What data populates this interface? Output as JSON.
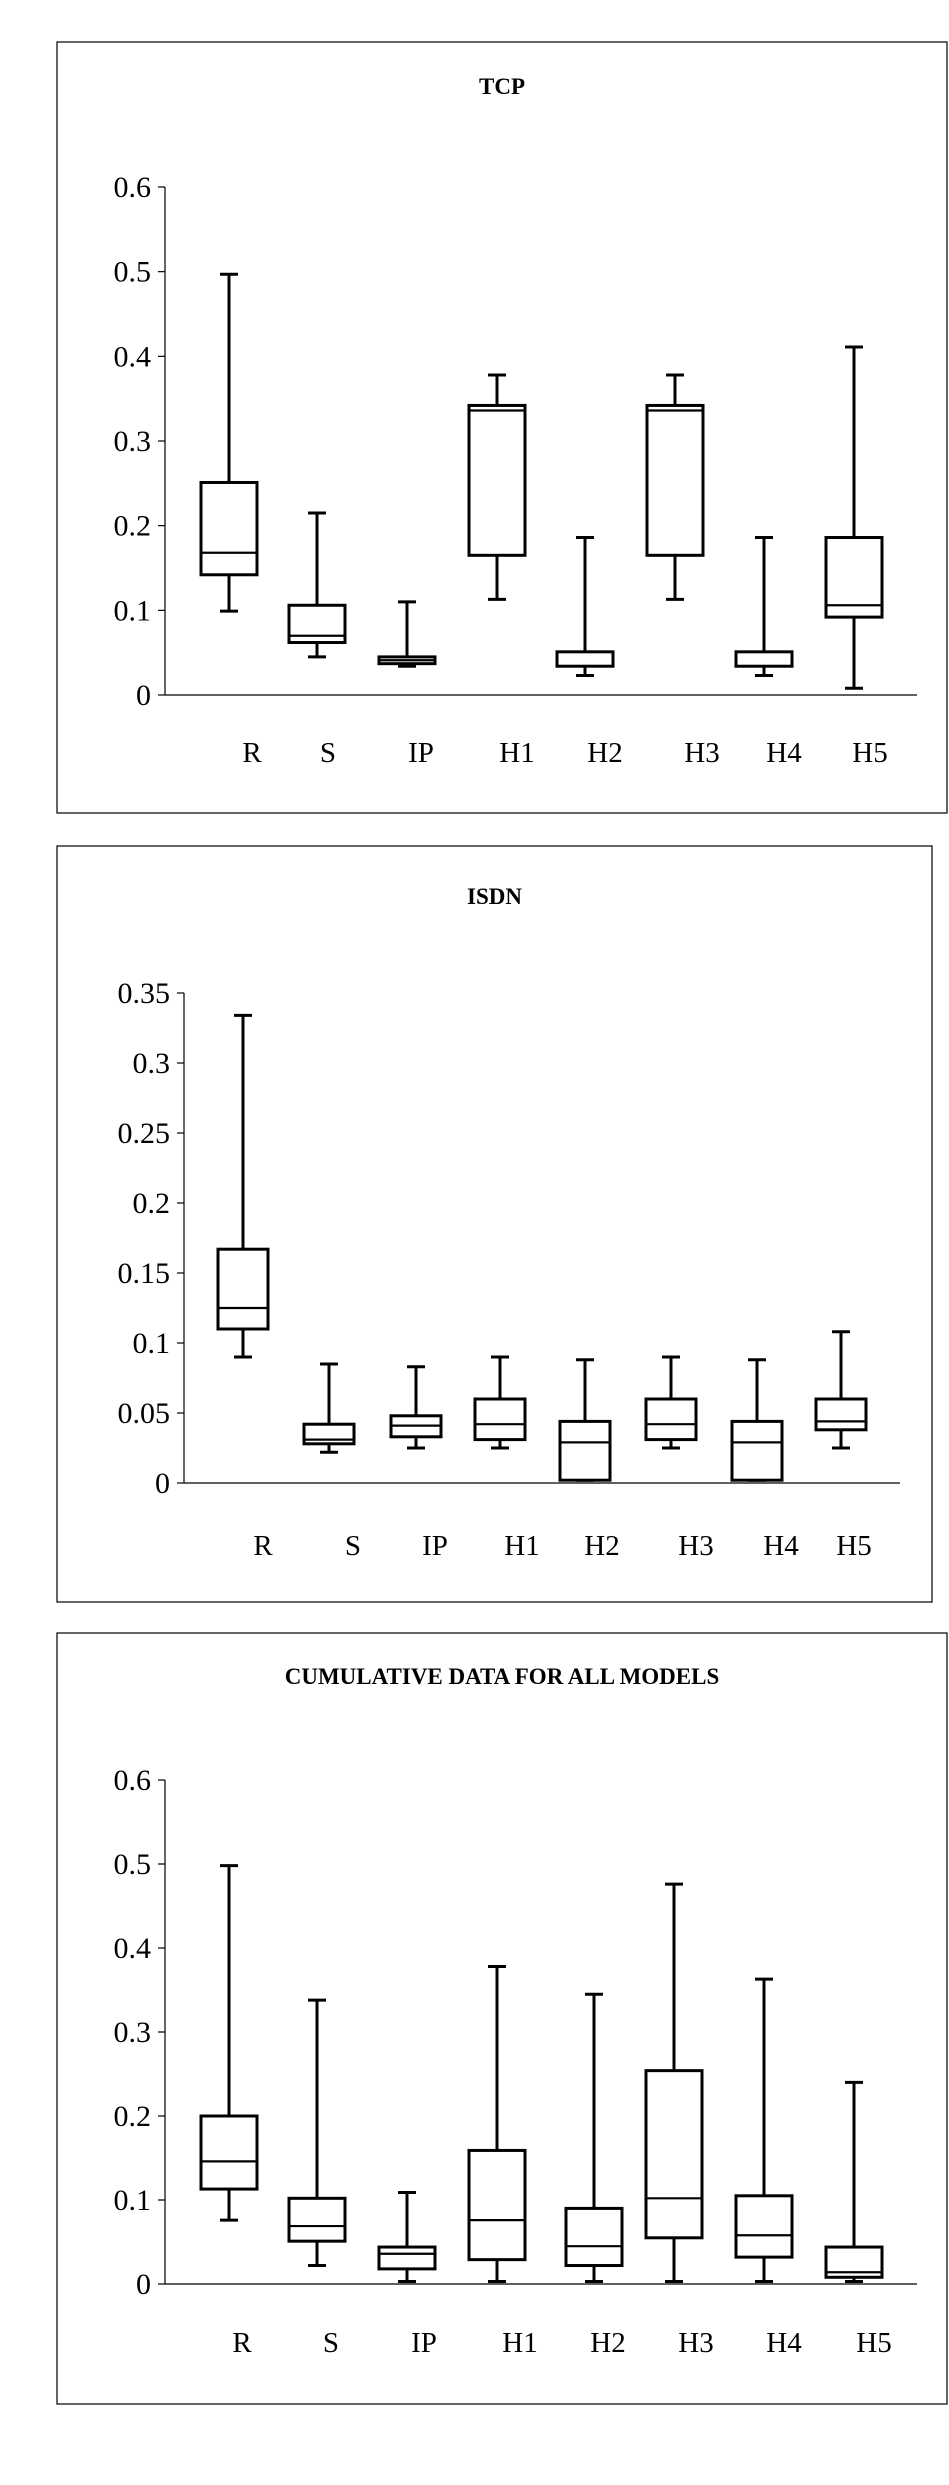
{
  "chart_data": [
    {
      "type": "box",
      "title": "TCP",
      "xlabel": "",
      "ylabel": "",
      "ylim": [
        0,
        0.6
      ],
      "yticks": [
        "0",
        "0.1",
        "0.2",
        "0.3",
        "0.4",
        "0.5",
        "0.6"
      ],
      "ytick_values": [
        0,
        0.1,
        0.2,
        0.3,
        0.4,
        0.5,
        0.6
      ],
      "categories": [
        "R",
        "S",
        "IP",
        "H1",
        "H2",
        "H3",
        "H4",
        "H5"
      ],
      "boxes": [
        {
          "min": 0.099,
          "q1": 0.142,
          "median": 0.168,
          "q3": 0.251,
          "max": 0.497
        },
        {
          "min": 0.045,
          "q1": 0.062,
          "median": 0.07,
          "q3": 0.106,
          "max": 0.215
        },
        {
          "min": 0.034,
          "q1": 0.037,
          "median": 0.041,
          "q3": 0.045,
          "max": 0.11
        },
        {
          "min": 0.113,
          "q1": 0.165,
          "median": 0.336,
          "q3": 0.342,
          "max": 0.378
        },
        {
          "min": 0.023,
          "q1": 0.034,
          "median": 0.034,
          "q3": 0.051,
          "max": 0.186
        },
        {
          "min": 0.113,
          "q1": 0.165,
          "median": 0.336,
          "q3": 0.342,
          "max": 0.378
        },
        {
          "min": 0.023,
          "q1": 0.034,
          "median": 0.034,
          "q3": 0.051,
          "max": 0.186
        },
        {
          "min": 0.008,
          "q1": 0.092,
          "median": 0.106,
          "q3": 0.186,
          "max": 0.411
        }
      ]
    },
    {
      "type": "box",
      "title": "ISDN",
      "xlabel": "",
      "ylabel": "",
      "ylim": [
        0,
        0.35
      ],
      "yticks": [
        "0",
        "0.05",
        "0.1",
        "0.15",
        "0.2",
        "0.25",
        "0.3",
        "0.35"
      ],
      "ytick_values": [
        0,
        0.05,
        0.1,
        0.15,
        0.2,
        0.25,
        0.3,
        0.35
      ],
      "categories": [
        "R",
        "S",
        "IP",
        "H1",
        "H2",
        "H3",
        "H4",
        "H5"
      ],
      "boxes": [
        {
          "min": 0.09,
          "q1": 0.11,
          "median": 0.125,
          "q3": 0.167,
          "max": 0.334
        },
        {
          "min": 0.022,
          "q1": 0.028,
          "median": 0.031,
          "q3": 0.042,
          "max": 0.085
        },
        {
          "min": 0.025,
          "q1": 0.033,
          "median": 0.041,
          "q3": 0.048,
          "max": 0.083
        },
        {
          "min": 0.025,
          "q1": 0.031,
          "median": 0.042,
          "q3": 0.06,
          "max": 0.09
        },
        {
          "min": 0.002,
          "q1": 0.002,
          "median": 0.029,
          "q3": 0.044,
          "max": 0.088
        },
        {
          "min": 0.025,
          "q1": 0.031,
          "median": 0.042,
          "q3": 0.06,
          "max": 0.09
        },
        {
          "min": 0.002,
          "q1": 0.002,
          "median": 0.029,
          "q3": 0.044,
          "max": 0.088
        },
        {
          "min": 0.025,
          "q1": 0.038,
          "median": 0.044,
          "q3": 0.06,
          "max": 0.108
        }
      ]
    },
    {
      "type": "box",
      "title": "CUMULATIVE DATA FOR ALL MODELS",
      "xlabel": "",
      "ylabel": "",
      "ylim": [
        0,
        0.6
      ],
      "yticks": [
        "0",
        "0.1",
        "0.2",
        "0.3",
        "0.4",
        "0.5",
        "0.6"
      ],
      "ytick_values": [
        0,
        0.1,
        0.2,
        0.3,
        0.4,
        0.5,
        0.6
      ],
      "categories": [
        "R",
        "S",
        "IP",
        "H1",
        "H2",
        "H3",
        "H4",
        "H5"
      ],
      "boxes": [
        {
          "min": 0.076,
          "q1": 0.113,
          "median": 0.146,
          "q3": 0.2,
          "max": 0.498
        },
        {
          "min": 0.022,
          "q1": 0.051,
          "median": 0.069,
          "q3": 0.102,
          "max": 0.338
        },
        {
          "min": 0.003,
          "q1": 0.018,
          "median": 0.036,
          "q3": 0.044,
          "max": 0.109
        },
        {
          "min": 0.003,
          "q1": 0.029,
          "median": 0.076,
          "q3": 0.159,
          "max": 0.378
        },
        {
          "min": 0.003,
          "q1": 0.022,
          "median": 0.045,
          "q3": 0.09,
          "max": 0.345
        },
        {
          "min": 0.003,
          "q1": 0.055,
          "median": 0.102,
          "q3": 0.254,
          "max": 0.476
        },
        {
          "min": 0.003,
          "q1": 0.032,
          "median": 0.058,
          "q3": 0.105,
          "max": 0.363
        },
        {
          "min": 0.003,
          "q1": 0.008,
          "median": 0.014,
          "q3": 0.044,
          "max": 0.24
        }
      ]
    }
  ]
}
